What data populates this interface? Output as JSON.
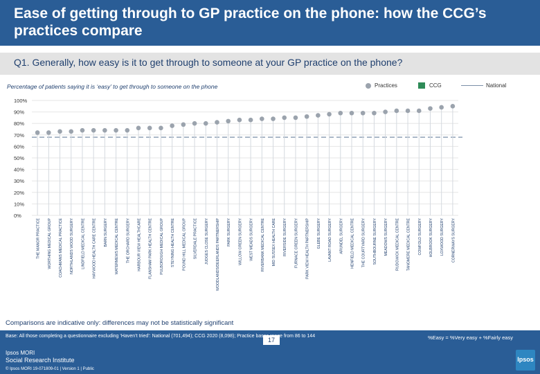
{
  "header": {
    "title": "Ease of getting through to GP practice on the phone: how the CCG’s practices compare",
    "question": "Q1. Generally, how easy is it to get through to someone at your GP practice on the phone?"
  },
  "colors": {
    "header_bg": "#2a5d96",
    "practice_marker": "#9ba3ad",
    "ccg": "#2e8b57",
    "national": "#7a8fa8"
  },
  "chart_data": {
    "type": "scatter",
    "title": "Percentage of patients saying it is ‘easy’ to get through to someone on the phone",
    "legend": {
      "practices": "Practices",
      "ccg": "CCG",
      "national": "National",
      "placement": "top-right"
    },
    "y_ticks": [
      "100%",
      "90%",
      "80%",
      "70%",
      "60%",
      "50%",
      "40%",
      "30%",
      "20%",
      "10%",
      "0%"
    ],
    "ylim": [
      0,
      100
    ],
    "grid": true,
    "national_value": 68,
    "categories": [
      "THE MANOR PRACTICE",
      "WORTHING MEDICAL GROUP",
      "COACHMANS MEDICAL PRACTICE",
      "NORTHLANDS WOOD SURGERY",
      "LINDFIELD MEDICAL CENTRE",
      "HAYWOOD HEALTH CARE CENTRE",
      "BARN SURGERY",
      "WATERMEWS MEDICAL CENTRE",
      "THE ORCHARD SURGERY",
      "HARBOUR VIEW HEALTHCARE",
      "FLANSHAM PARK HEALTH CENTRE",
      "PULBOROUGH MEDICAL GROUP",
      "STEYNING HEALTH CENTRE",
      "POUND HILL MEDICAL GROUP",
      "SILVERDALE PRACTICE",
      "JUDGES CLOSE SURGERY",
      "WOODLANDS/DEERLANDS PARTNERSHIP",
      "PARK SURGERY",
      "WILLOW GREEN SURGERY",
      "WEST MEADS SURGERY",
      "RIVERBANK MEDICAL CENTRE",
      "MID SUSSEX HEALTH CARE",
      "RIVERSIDE SURGERY",
      "FURNACE GREEN SURGERY",
      "PARK VIEW HEALTH PARTNERSHIP",
      "GLEBE SURGERY",
      "LAVANT ROAD SURGERY",
      "ARUNDEL SURGERY",
      "HENFIELD MEDICAL CENTRE",
      "THE COURTYARD SURGERY",
      "SOUTHBOURNE SURGERY",
      "MEADOWS SURGERY",
      "RUDGWICK MEDICAL CENTRE",
      "TANGMERE MEDICAL CENTRE",
      "COWFOLD SURGERY",
      "HOLBROOK SURGERY",
      "LOXWOOD SURGERY",
      "CORNERWAYS SURGERY"
    ],
    "values": [
      72,
      72,
      73,
      73,
      74,
      74,
      74,
      74,
      74,
      76,
      76,
      76,
      78,
      79,
      80,
      80,
      81,
      82,
      83,
      83,
      84,
      84,
      85,
      85,
      86,
      87,
      88,
      89,
      89,
      89,
      89,
      90,
      91,
      91,
      91,
      93,
      94,
      95
    ]
  },
  "footer": {
    "note": "Comparisons are indicative only: differences may not be statistically significant",
    "base": "Base: All those completing a questionnaire excluding ‘Haven’t tried’: National (701,494); CCG 2020 (8,098); Practice bases range from 86 to 144",
    "formula": "%Easy = %Very easy + %Fairly easy",
    "logo_line1": "Ipsos MORI",
    "logo_line2": "Social Research Institute",
    "copyright": "© Ipsos MORI      19-071809-01 | Version 1 | Public",
    "page_number": "17",
    "badge": "Ipsos"
  }
}
